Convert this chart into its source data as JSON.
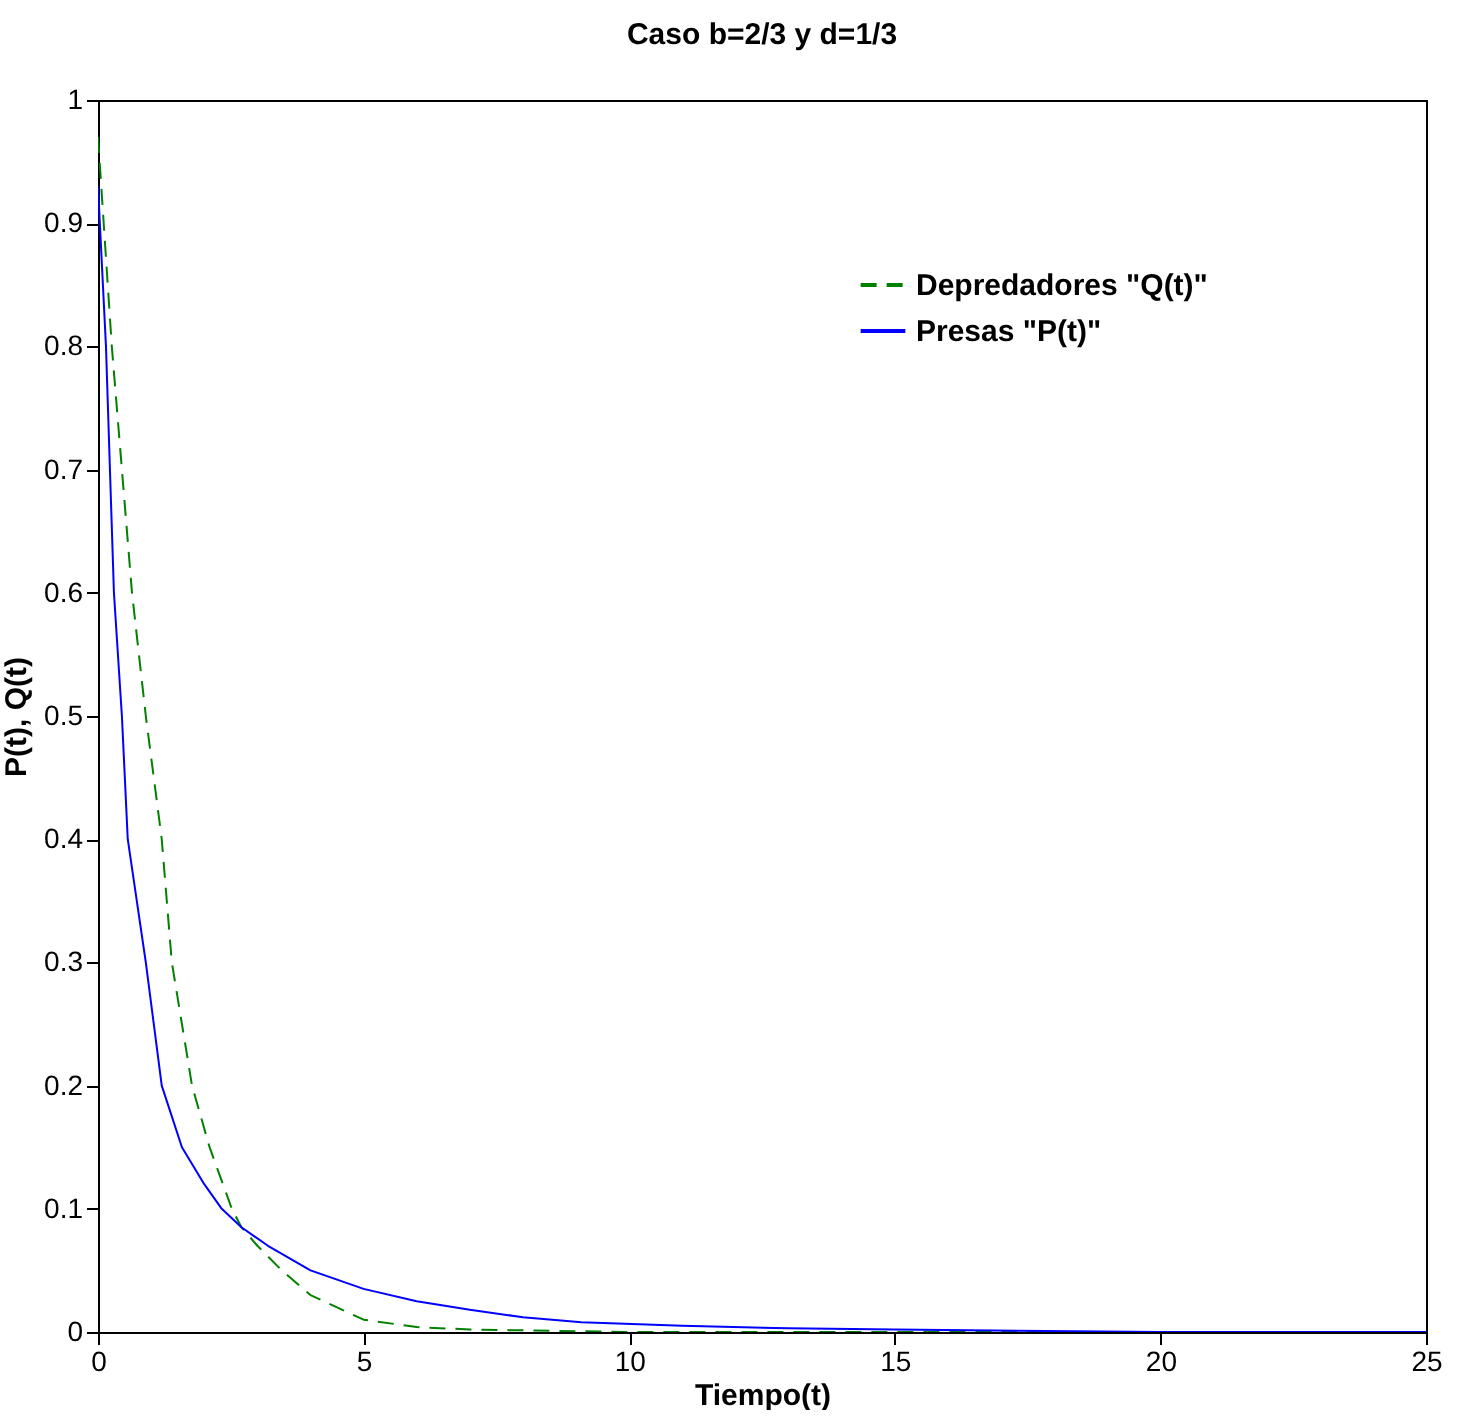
{
  "chart_data": {
    "type": "line",
    "title": "Caso b=2/3 y d=1/3",
    "xlabel": "Tiempo(t)",
    "ylabel": "P(t), Q(t)",
    "series": [
      {
        "name": "Depredadores \"Q(t)\"",
        "color": "#008000",
        "line_style": "dashed",
        "x": [
          0,
          0.26,
          0.64,
          0.9,
          1.2,
          1.39,
          1.77,
          2.1,
          2.52,
          2.7,
          3.0,
          3.46,
          4.0,
          5.0,
          6.0,
          7.0,
          10,
          15,
          20,
          25
        ],
        "values": [
          0.97,
          0.8,
          0.6,
          0.5,
          0.4,
          0.3,
          0.2,
          0.15,
          0.1,
          0.085,
          0.07,
          0.05,
          0.03,
          0.01,
          0.004,
          0.002,
          0,
          0,
          0,
          0
        ]
      },
      {
        "name": "Presas \"P(t)\"",
        "color": "#0000ff",
        "line_style": "solid",
        "x": [
          0,
          0.15,
          0.3,
          0.45,
          0.56,
          0.9,
          1.2,
          1.58,
          2.0,
          2.33,
          2.7,
          3.2,
          4.0,
          5.0,
          6.0,
          7.0,
          8.0,
          9.1,
          11,
          13,
          15,
          20,
          25
        ],
        "values": [
          0.93,
          0.8,
          0.6,
          0.5,
          0.4,
          0.3,
          0.2,
          0.15,
          0.12,
          0.1,
          0.085,
          0.07,
          0.05,
          0.035,
          0.025,
          0.018,
          0.012,
          0.008,
          0.005,
          0.003,
          0.002,
          0,
          0
        ]
      }
    ],
    "xlim": [
      0,
      25
    ],
    "xticks": [
      0,
      5,
      10,
      15,
      20,
      25
    ],
    "ylim": [
      0,
      1
    ],
    "yticks": [
      0,
      0.1,
      0.2,
      0.3,
      0.4,
      0.5,
      0.6,
      0.7,
      0.8,
      0.9,
      1
    ],
    "grid": false,
    "legend": "top right",
    "marker": "none"
  }
}
